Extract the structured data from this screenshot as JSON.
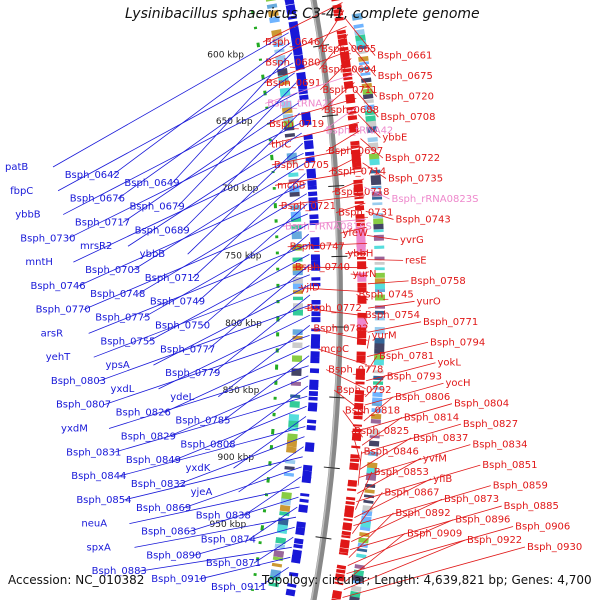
{
  "title": "Lysinibacillus sphaericus C3-41, complete genome",
  "footer": {
    "accession": "Accession: NC_010382",
    "topology": "Topology: circular; Length: 4,639,821 bp; Genes: 4,700"
  },
  "colors": {
    "backbone": "#888888",
    "forward": "#e01818",
    "reverse": "#1818d8",
    "rna": "#ee88cc",
    "tick_dot": "#22aa22"
  },
  "ticks": [
    "600 kbp",
    "650 kbp",
    "700 kbp",
    "750 kbp",
    "800 kbp",
    "850 kbp",
    "900 kbp",
    "950 kbp"
  ],
  "labels_right": [
    {
      "text": "Bsph_0646",
      "c": "f"
    },
    {
      "text": "Bsph_0665",
      "c": "f"
    },
    {
      "text": "Bsph_0661",
      "c": "f"
    },
    {
      "text": "Bsph_0680",
      "c": "f"
    },
    {
      "text": "Bsph_0694",
      "c": "f"
    },
    {
      "text": "Bsph_0675",
      "c": "f"
    },
    {
      "text": "Bsph_0691",
      "c": "f"
    },
    {
      "text": "Bsph_0711",
      "c": "f"
    },
    {
      "text": "Bsph_0720",
      "c": "f"
    },
    {
      "text": "Bsph_tRNA27",
      "c": "r"
    },
    {
      "text": "Bsph_0688",
      "c": "f"
    },
    {
      "text": "Bsph_0708",
      "c": "f"
    },
    {
      "text": "Bsph_0719",
      "c": "f"
    },
    {
      "text": "Bsph_tRNA42",
      "c": "r"
    },
    {
      "text": "ybbE",
      "c": "f"
    },
    {
      "text": "thiC",
      "c": "f"
    },
    {
      "text": "Bsph_0697",
      "c": "f"
    },
    {
      "text": "Bsph_0722",
      "c": "f"
    },
    {
      "text": "Bsph_0705",
      "c": "f"
    },
    {
      "text": "Bsph_0714",
      "c": "f"
    },
    {
      "text": "Bsph_0735",
      "c": "f"
    },
    {
      "text": "mcpB",
      "c": "f"
    },
    {
      "text": "Bsph_0718",
      "c": "f"
    },
    {
      "text": "Bsph_rRNA0823S",
      "c": "r"
    },
    {
      "text": "Bsph_0721",
      "c": "f"
    },
    {
      "text": "Bsph_0731",
      "c": "f"
    },
    {
      "text": "Bsph_0743",
      "c": "f"
    },
    {
      "text": "Bsph_rRNA0816S",
      "c": "r"
    },
    {
      "text": "yfeW",
      "c": "f"
    },
    {
      "text": "yvrG",
      "c": "f"
    },
    {
      "text": "Bsph_0747",
      "c": "f"
    },
    {
      "text": "ybbH",
      "c": "f"
    },
    {
      "text": "resE",
      "c": "f"
    },
    {
      "text": "Bsph_0740",
      "c": "f"
    },
    {
      "text": "yurN",
      "c": "f"
    },
    {
      "text": "Bsph_0758",
      "c": "f"
    },
    {
      "text": "yjlD",
      "c": "f"
    },
    {
      "text": "Bsph_0745",
      "c": "f"
    },
    {
      "text": "yurO",
      "c": "f"
    },
    {
      "text": "Bsph_0772",
      "c": "f"
    },
    {
      "text": "Bsph_0754",
      "c": "f"
    },
    {
      "text": "Bsph_0771",
      "c": "f"
    },
    {
      "text": "Bsph_0782",
      "c": "f"
    },
    {
      "text": "yurM",
      "c": "f"
    },
    {
      "text": "Bsph_0794",
      "c": "f"
    },
    {
      "text": "mcpC",
      "c": "f"
    },
    {
      "text": "Bsph_0781",
      "c": "f"
    },
    {
      "text": "yokL",
      "c": "f"
    },
    {
      "text": "Bsph_0778",
      "c": "f"
    },
    {
      "text": "Bsph_0793",
      "c": "f"
    },
    {
      "text": "yocH",
      "c": "f"
    },
    {
      "text": "Bsph_0792",
      "c": "f"
    },
    {
      "text": "Bsph_0806",
      "c": "f"
    },
    {
      "text": "Bsph_0804",
      "c": "f"
    },
    {
      "text": "Bsph_0818",
      "c": "f"
    },
    {
      "text": "Bsph_0814",
      "c": "f"
    },
    {
      "text": "Bsph_0827",
      "c": "f"
    },
    {
      "text": "Bsph_0825",
      "c": "f"
    },
    {
      "text": "Bsph_0837",
      "c": "f"
    },
    {
      "text": "Bsph_0834",
      "c": "f"
    },
    {
      "text": "Bsph_0846",
      "c": "f"
    },
    {
      "text": "yvfM",
      "c": "f"
    },
    {
      "text": "Bsph_0851",
      "c": "f"
    },
    {
      "text": "Bsph_0853",
      "c": "f"
    },
    {
      "text": "yfiB",
      "c": "f"
    },
    {
      "text": "Bsph_0859",
      "c": "f"
    },
    {
      "text": "Bsph_0867",
      "c": "f"
    },
    {
      "text": "Bsph_0873",
      "c": "f"
    },
    {
      "text": "Bsph_0885",
      "c": "f"
    },
    {
      "text": "Bsph_0892",
      "c": "f"
    },
    {
      "text": "Bsph_0896",
      "c": "f"
    },
    {
      "text": "Bsph_0906",
      "c": "f"
    },
    {
      "text": "Bsph_0909",
      "c": "f"
    },
    {
      "text": "Bsph_0922",
      "c": "f"
    },
    {
      "text": "Bsph_0930",
      "c": "f"
    }
  ],
  "labels_left": [
    "patB",
    "Bsph_0642",
    "Bsph_0649",
    "fbpC",
    "Bsph_0676",
    "Bsph_0679",
    "ybbB",
    "Bsph_0717",
    "Bsph_0689",
    "Bsph_0730",
    "mrsR2",
    "ybbB",
    "mntH",
    "Bsph_0703",
    "Bsph_0712",
    "Bsph_0746",
    "Bsph_0748",
    "Bsph_0749",
    "Bsph_0770",
    "Bsph_0775",
    "Bsph_0750",
    "arsR",
    "Bsph_0755",
    "Bsph_0777",
    "yehT",
    "ypsA",
    "Bsph_0779",
    "Bsph_0803",
    "yxdL",
    "ydeL",
    "Bsph_0807",
    "Bsph_0826",
    "Bsph_0785",
    "yxdM",
    "Bsph_0829",
    "Bsph_0808",
    "Bsph_0831",
    "Bsph_0849",
    "yxdK",
    "Bsph_0844",
    "Bsph_0832",
    "yjeA",
    "Bsph_0854",
    "Bsph_0869",
    "Bsph_0838",
    "neuA",
    "Bsph_0863",
    "Bsph_0874",
    "spxA",
    "Bsph_0890",
    "Bsph_0871",
    "Bsph_0883",
    "Bsph_0910",
    "Bsph_0911"
  ]
}
